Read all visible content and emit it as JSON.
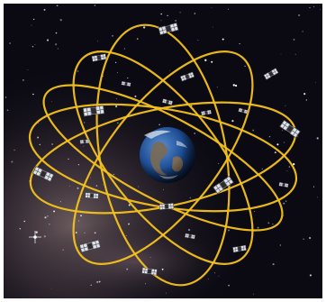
{
  "colors": {
    "frame": "#ffffff",
    "space": "#0b0a12",
    "nebula_dark": "#3a2d3f",
    "nebula_light": "#b89c9a",
    "orbit": "#f4c21c",
    "earth_ocean": "#1f4f96",
    "earth_land": "#7a6a52",
    "earth_cloud": "#e8eef5",
    "satellite_panel": "#dfe3ea",
    "satellite_body": "#2c2c30"
  },
  "icons": {
    "earth": "earth-globe-icon",
    "satellite": "satellite-icon",
    "orbit": "orbit-ellipse",
    "star": "star-glint-icon"
  }
}
